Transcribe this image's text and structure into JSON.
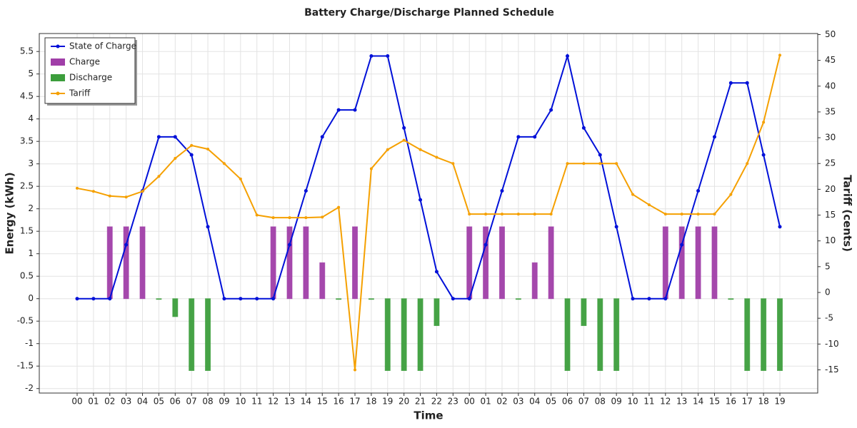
{
  "chart_data": {
    "type": "combo",
    "title": "Battery Charge/Discharge Planned Schedule",
    "x_label": "Time",
    "y_label": "Energy (kWh)",
    "y2_label": "Tariff (cents)",
    "categories": [
      "00",
      "01",
      "02",
      "03",
      "04",
      "05",
      "06",
      "07",
      "08",
      "09",
      "10",
      "11",
      "12",
      "13",
      "14",
      "15",
      "16",
      "17",
      "18",
      "19",
      "20",
      "21",
      "22",
      "23",
      "00",
      "01",
      "02",
      "03",
      "04",
      "05",
      "06",
      "07",
      "08",
      "09",
      "10",
      "11",
      "12",
      "13",
      "14",
      "15",
      "16",
      "17",
      "18",
      "19"
    ],
    "ylim": [
      -2.1,
      5.9
    ],
    "yticks": [
      -2,
      -1.5,
      -1,
      -0.5,
      0,
      0.5,
      1,
      1.5,
      2,
      2.5,
      3,
      3.5,
      4,
      4.5,
      5,
      5.5
    ],
    "y2lim": [
      -19.5,
      50.2
    ],
    "y2ticks": [
      -15,
      -10,
      -5,
      0,
      5,
      10,
      15,
      20,
      25,
      30,
      35,
      40,
      45,
      50
    ],
    "grid": true,
    "legend": "upper left",
    "series": [
      {
        "name": "State of Charge",
        "type": "line",
        "color": "#0010d8",
        "values": [
          0,
          0,
          0,
          1.2,
          2.4,
          3.6,
          3.6,
          3.2,
          1.6,
          0,
          0,
          0,
          0,
          1.2,
          2.4,
          3.6,
          4.2,
          4.2,
          5.4,
          5.4,
          3.8,
          2.2,
          0.6,
          0,
          0,
          1.2,
          2.4,
          3.6,
          3.6,
          4.2,
          5.4,
          3.8,
          3.2,
          1.6,
          0,
          0,
          0,
          1.2,
          2.4,
          3.6,
          4.8,
          4.8,
          3.2,
          1.6
        ]
      },
      {
        "name": "Charge",
        "type": "bar",
        "color": "#a03ea8",
        "values": [
          null,
          null,
          1.6,
          1.6,
          1.6,
          null,
          null,
          null,
          null,
          null,
          null,
          null,
          1.6,
          1.6,
          1.6,
          0.8,
          null,
          1.6,
          null,
          null,
          null,
          null,
          null,
          null,
          1.6,
          1.6,
          1.6,
          null,
          0.8,
          1.6,
          null,
          null,
          null,
          null,
          null,
          null,
          1.6,
          1.6,
          1.6,
          1.6,
          null,
          null,
          null,
          null
        ]
      },
      {
        "name": "Discharge",
        "type": "bar",
        "color": "#3c9e3c",
        "values": [
          null,
          null,
          null,
          null,
          null,
          0,
          -0.4,
          -1.6,
          -1.6,
          null,
          null,
          null,
          null,
          null,
          null,
          null,
          0,
          null,
          0,
          -1.6,
          -1.6,
          -1.6,
          -0.6,
          null,
          null,
          null,
          null,
          0,
          null,
          null,
          -1.6,
          -0.6,
          -1.6,
          -1.6,
          null,
          null,
          null,
          null,
          null,
          null,
          0,
          -1.6,
          -1.6,
          -1.6
        ]
      },
      {
        "name": "Tariff",
        "type": "line",
        "axis": "y2",
        "color": "#f5a000",
        "values": [
          20.2,
          19.6,
          18.7,
          18.5,
          19.6,
          22.5,
          26,
          28.5,
          27.8,
          25,
          22,
          15,
          14.5,
          14.5,
          14.5,
          14.6,
          16.5,
          -15,
          24,
          27.7,
          29.5,
          27.7,
          26.2,
          25,
          15.2,
          15.2,
          15.2,
          15.2,
          15.2,
          15.2,
          25,
          25,
          25,
          25,
          19,
          17,
          15.2,
          15.2,
          15.2,
          15.2,
          19,
          25,
          33,
          46
        ]
      }
    ]
  }
}
